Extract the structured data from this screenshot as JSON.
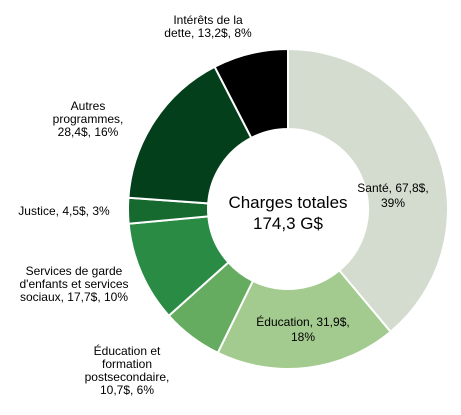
{
  "chart_data": {
    "type": "pie",
    "center_text": [
      "Charges totales",
      "174,3 G$"
    ],
    "slices": [
      {
        "name": "Santé",
        "value": 67.8,
        "percent": 39,
        "color": "#d3dcce",
        "label_lines": [
          "Santé, 67,8$,",
          "39%"
        ]
      },
      {
        "name": "Éducation",
        "value": 31.9,
        "percent": 18,
        "color": "#a3cb8f",
        "label_lines": [
          "Éducation, 31,9$,",
          "18%"
        ]
      },
      {
        "name": "Éducation et formation postsecondaire",
        "value": 10.7,
        "percent": 6,
        "color": "#66ac60",
        "label_lines": [
          "Éducation et",
          "formation",
          "postsecondaire,",
          "10,7$, 6%"
        ]
      },
      {
        "name": "Services de garde d'enfants et services sociaux",
        "value": 17.7,
        "percent": 10,
        "color": "#2a8b45",
        "label_lines": [
          "Services de garde",
          "d'enfants et services",
          "sociaux, 17,7$, 10%"
        ]
      },
      {
        "name": "Justice",
        "value": 4.5,
        "percent": 3,
        "color": "#16692f",
        "label_lines": [
          "Justice, 4,5$, 3%"
        ]
      },
      {
        "name": "Autres programmes",
        "value": 28.4,
        "percent": 16,
        "color": "#033f1b",
        "label_lines": [
          "Autres",
          "programmes,",
          "28,4$, 16%"
        ]
      },
      {
        "name": "Intérêts de la dette",
        "value": 13.2,
        "percent": 8,
        "color": "#000000",
        "label_lines": [
          "Intérêts de la",
          "dette, 13,2$, 8%"
        ]
      }
    ]
  }
}
